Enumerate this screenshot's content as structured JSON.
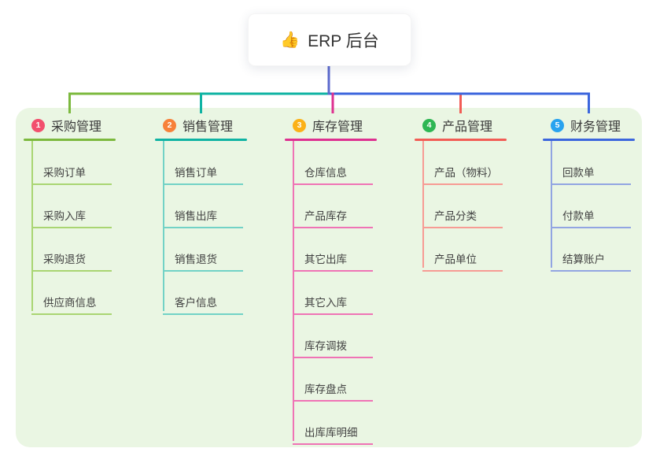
{
  "root": {
    "icon": "👍",
    "label": "ERP 后台",
    "stem_color": "#5c6ace"
  },
  "canvas": {
    "background": "#ffffff",
    "panel_background": "#eaf6e3"
  },
  "branches": [
    {
      "num": "1",
      "label": "采购管理",
      "badge_color": "#f2506e",
      "line_color": "#7cb93e",
      "child_line_color": "#a9d572",
      "children": [
        "采购订单",
        "采购入库",
        "采购退货",
        "供应商信息"
      ]
    },
    {
      "num": "2",
      "label": "销售管理",
      "badge_color": "#f7813a",
      "line_color": "#0fb3a3",
      "child_line_color": "#72d2c6",
      "children": [
        "销售订单",
        "销售出库",
        "销售退货",
        "客户信息"
      ]
    },
    {
      "num": "3",
      "label": "库存管理",
      "badge_color": "#fbb117",
      "line_color": "#de3090",
      "child_line_color": "#ef73b5",
      "children": [
        "仓库信息",
        "产品库存",
        "其它出库",
        "其它入库",
        "库存调拨",
        "库存盘点",
        "出库库明细"
      ]
    },
    {
      "num": "4",
      "label": "产品管理",
      "badge_color": "#2eb653",
      "line_color": "#f25c55",
      "child_line_color": "#f79b94",
      "children": [
        "产品（物料）",
        "产品分类",
        "产品单位"
      ]
    },
    {
      "num": "5",
      "label": "财务管理",
      "badge_color": "#29a3ef",
      "line_color": "#3c66dd",
      "child_line_color": "#92a5e2",
      "children": [
        "回款单",
        "付款单",
        "结算账户"
      ]
    }
  ]
}
